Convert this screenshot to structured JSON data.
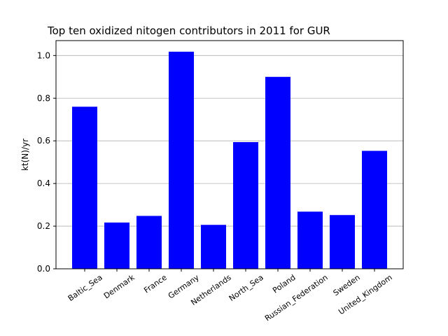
{
  "chart_data": {
    "type": "bar",
    "title": "Top ten oxidized nitogen contributors in 2011 for  GUR",
    "xlabel": "",
    "ylabel": "kt(N)/yr",
    "categories": [
      "Baltic_Sea",
      "Denmark",
      "France",
      "Germany",
      "Netherlands",
      "North_Sea",
      "Poland",
      "Russian_Federation",
      "Sweden",
      "United_Kingdom"
    ],
    "values": [
      0.76,
      0.217,
      0.248,
      1.018,
      0.206,
      0.594,
      0.9,
      0.268,
      0.252,
      0.553
    ],
    "ylim": [
      0,
      1.07
    ],
    "yticks": [
      0.0,
      0.2,
      0.4,
      0.6,
      0.8,
      1.0
    ],
    "ytick_labels": [
      "0.0",
      "0.2",
      "0.4",
      "0.6",
      "0.8",
      "1.0"
    ],
    "grid": "y",
    "bar_color": "#0000ff"
  }
}
